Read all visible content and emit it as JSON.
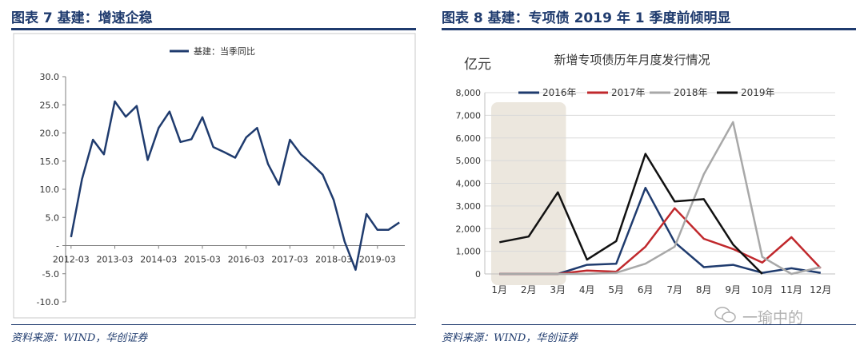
{
  "left": {
    "figure_title": "图表 7   基建：增速企稳",
    "source": "资料来源：WIND，华创证券",
    "chart_data": {
      "type": "line",
      "title": "",
      "legend_position": "top-center",
      "x_tick_labels": [
        "2012-03",
        "2013-03",
        "2014-03",
        "2015-03",
        "2016-03",
        "2017-03",
        "2018-03",
        "2019-03"
      ],
      "y_tick_labels": [
        "30.0",
        "25.0",
        "20.0",
        "15.0",
        "10.0",
        "5.0",
        "-",
        "-5.0",
        "-10.0"
      ],
      "ylim": [
        -10,
        30
      ],
      "grid": false,
      "series": [
        {
          "name": "基建：当季同比",
          "color": "#1f3b6e",
          "x": [
            "2012-03",
            "2012-06",
            "2012-09",
            "2012-12",
            "2013-03",
            "2013-06",
            "2013-09",
            "2013-12",
            "2014-03",
            "2014-06",
            "2014-09",
            "2014-12",
            "2015-03",
            "2015-06",
            "2015-09",
            "2015-12",
            "2016-03",
            "2016-06",
            "2016-09",
            "2016-12",
            "2017-03",
            "2017-06",
            "2017-09",
            "2017-12",
            "2018-03",
            "2018-06",
            "2018-09",
            "2018-12",
            "2019-03",
            "2019-06",
            "2019-09"
          ],
          "values": [
            1.5,
            11.8,
            18.8,
            16.2,
            25.6,
            22.9,
            24.8,
            15.2,
            20.9,
            23.8,
            18.4,
            18.9,
            22.8,
            17.5,
            16.6,
            15.6,
            19.2,
            20.9,
            14.5,
            10.8,
            18.8,
            16.2,
            14.5,
            12.6,
            8.1,
            0.7,
            -4.3,
            5.6,
            2.8,
            2.8,
            4.1
          ]
        }
      ]
    }
  },
  "right": {
    "figure_title": "图表 8   基建：专项债 2019 年 1 季度前倾明显",
    "source": "资料来源：WIND，华创证券",
    "watermark": "一瑜中的",
    "chart_data": {
      "type": "line",
      "title": "新增专项债历年月度发行情况",
      "unit_label": "亿元",
      "legend_position": "top",
      "categories": [
        "1月",
        "2月",
        "3月",
        "4月",
        "5月",
        "6月",
        "7月",
        "8月",
        "9月",
        "10月",
        "11月",
        "12月"
      ],
      "y_tick_labels": [
        "8,000",
        "7,000",
        "6,000",
        "5,000",
        "4,000",
        "3,000",
        "2,000",
        "1,000",
        "0"
      ],
      "ylim": [
        0,
        8000
      ],
      "grid": true,
      "highlight": {
        "from": "1月",
        "to": "3月",
        "color": "#ece7de"
      },
      "series": [
        {
          "name": "2016年",
          "color": "#1f3b6e",
          "values": [
            0,
            0,
            0,
            400,
            450,
            3800,
            1400,
            300,
            400,
            50,
            250,
            50
          ]
        },
        {
          "name": "2017年",
          "color": "#c0282c",
          "values": [
            0,
            0,
            0,
            150,
            100,
            1200,
            2900,
            1550,
            1100,
            500,
            1620,
            250
          ]
        },
        {
          "name": "2018年",
          "color": "#a8a8a8",
          "values": [
            0,
            0,
            0,
            0,
            50,
            450,
            1200,
            4400,
            6700,
            750,
            0,
            300
          ]
        },
        {
          "name": "2019年",
          "color": "#111111",
          "values": [
            1400,
            1650,
            3600,
            630,
            1450,
            5300,
            3200,
            3300,
            1300,
            0,
            null,
            null
          ]
        }
      ]
    }
  }
}
